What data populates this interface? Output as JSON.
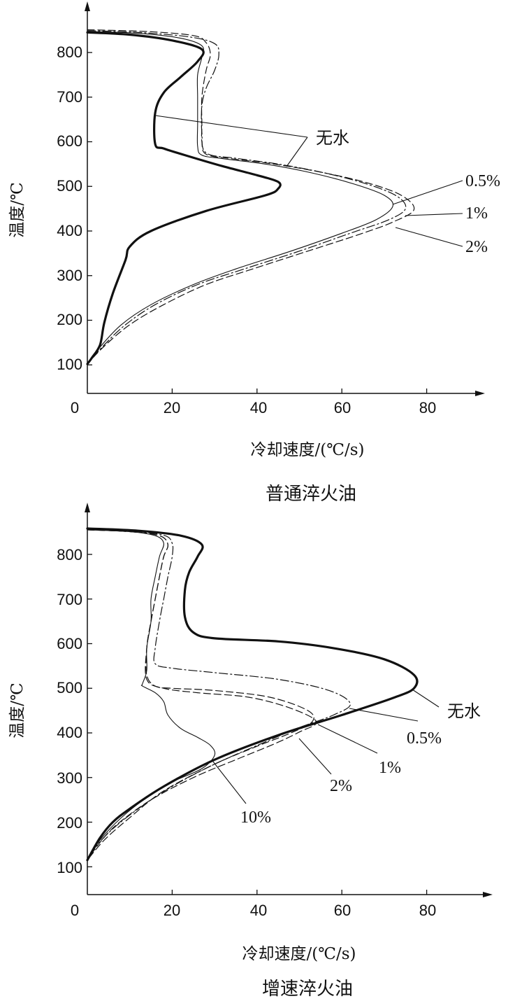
{
  "chart_data": [
    {
      "type": "line",
      "title": "普通淬火油",
      "xlabel": "冷却速度/(℃/s)",
      "ylabel": "温度/℃",
      "xticks": [
        "0",
        "20",
        "40",
        "60",
        "80"
      ],
      "yticks": [
        "100",
        "200",
        "300",
        "400",
        "500",
        "600",
        "700",
        "800"
      ],
      "xlim": [
        0,
        95
      ],
      "ylim": [
        40,
        900
      ],
      "grid": false,
      "series": [
        {
          "name": "无水",
          "style": "solid-thick",
          "points": [
            [
              0,
              845
            ],
            [
              10,
              840
            ],
            [
              20,
              827
            ],
            [
              27,
              807
            ],
            [
              26,
              780
            ],
            [
              22,
              745
            ],
            [
              18,
              710
            ],
            [
              16,
              665
            ],
            [
              16,
              595
            ],
            [
              18,
              585
            ],
            [
              23,
              570
            ],
            [
              32,
              545
            ],
            [
              40,
              525
            ],
            [
              45,
              510
            ],
            [
              45,
              495
            ],
            [
              42,
              480
            ],
            [
              28,
              445
            ],
            [
              15,
              400
            ],
            [
              10,
              365
            ],
            [
              9,
              335
            ],
            [
              6,
              260
            ],
            [
              4,
              195
            ],
            [
              3,
              145
            ],
            [
              1,
              115
            ],
            [
              0,
              102
            ]
          ]
        },
        {
          "name": "0.5%",
          "style": "solid-thin",
          "points": [
            [
              0,
              847
            ],
            [
              12,
              843
            ],
            [
              22,
              832
            ],
            [
              27,
              815
            ],
            [
              27,
              790
            ],
            [
              26,
              750
            ],
            [
              26,
              700
            ],
            [
              26,
              640
            ],
            [
              26,
              590
            ],
            [
              27,
              570
            ],
            [
              32,
              562
            ],
            [
              42,
              550
            ],
            [
              53,
              530
            ],
            [
              63,
              505
            ],
            [
              70,
              480
            ],
            [
              72,
              455
            ],
            [
              68,
              425
            ],
            [
              60,
              395
            ],
            [
              48,
              355
            ],
            [
              35,
              315
            ],
            [
              25,
              280
            ],
            [
              15,
              235
            ],
            [
              8,
              190
            ],
            [
              3,
              140
            ],
            [
              0,
              102
            ]
          ]
        },
        {
          "name": "1%",
          "style": "dashdot",
          "points": [
            [
              0,
              849
            ],
            [
              12,
              845
            ],
            [
              24,
              835
            ],
            [
              30,
              820
            ],
            [
              31,
              795
            ],
            [
              30,
              760
            ],
            [
              28,
              720
            ],
            [
              27,
              680
            ],
            [
              27,
              620
            ],
            [
              28,
              575
            ],
            [
              35,
              563
            ],
            [
              45,
              550
            ],
            [
              56,
              530
            ],
            [
              66,
              505
            ],
            [
              73,
              478
            ],
            [
              75,
              450
            ],
            [
              71,
              425
            ],
            [
              62,
              395
            ],
            [
              50,
              355
            ],
            [
              37,
              315
            ],
            [
              26,
              280
            ],
            [
              16,
              235
            ],
            [
              9,
              190
            ],
            [
              4,
              145
            ],
            [
              0,
              102
            ]
          ]
        },
        {
          "name": "2%",
          "style": "dashed",
          "points": [
            [
              0,
              851
            ],
            [
              14,
              847
            ],
            [
              25,
              838
            ],
            [
              28,
              822
            ],
            [
              29,
              795
            ],
            [
              28,
              760
            ],
            [
              27,
              700
            ],
            [
              27,
              640
            ],
            [
              27,
              600
            ],
            [
              28,
              572
            ],
            [
              34,
              562
            ],
            [
              44,
              550
            ],
            [
              55,
              532
            ],
            [
              66,
              508
            ],
            [
              74,
              480
            ],
            [
              77,
              448
            ],
            [
              72,
              420
            ],
            [
              64,
              392
            ],
            [
              52,
              355
            ],
            [
              39,
              315
            ],
            [
              28,
              280
            ],
            [
              18,
              235
            ],
            [
              10,
              190
            ],
            [
              4,
              142
            ],
            [
              0,
              102
            ]
          ]
        }
      ],
      "annotations": [
        "无水",
        "0.5%",
        "1%",
        "2%"
      ]
    },
    {
      "type": "line",
      "title": "增速淬火油",
      "xlabel": "冷却速度/(℃/s)",
      "ylabel": "温度/℃",
      "xticks": [
        "0",
        "20",
        "40",
        "60",
        "80"
      ],
      "yticks": [
        "100",
        "200",
        "300",
        "400",
        "500",
        "600",
        "700",
        "800"
      ],
      "xlim": [
        0,
        95
      ],
      "ylim": [
        40,
        900
      ],
      "grid": false,
      "series": [
        {
          "name": "无水",
          "style": "solid-thick",
          "points": [
            [
              0,
              858
            ],
            [
              12,
              853
            ],
            [
              22,
              842
            ],
            [
              27,
              822
            ],
            [
              26,
              795
            ],
            [
              24,
              760
            ],
            [
              23,
              720
            ],
            [
              23,
              660
            ],
            [
              25,
              625
            ],
            [
              30,
              612
            ],
            [
              45,
              605
            ],
            [
              58,
              590
            ],
            [
              70,
              565
            ],
            [
              77,
              530
            ],
            [
              77,
              500
            ],
            [
              72,
              478
            ],
            [
              60,
              440
            ],
            [
              45,
              395
            ],
            [
              30,
              340
            ],
            [
              18,
              280
            ],
            [
              10,
              230
            ],
            [
              6,
              200
            ],
            [
              3,
              165
            ],
            [
              0,
              115
            ]
          ]
        },
        {
          "name": "0.5%",
          "style": "dashdot",
          "points": [
            [
              0,
              856
            ],
            [
              10,
              852
            ],
            [
              18,
              843
            ],
            [
              20,
              825
            ],
            [
              20,
              795
            ],
            [
              19,
              750
            ],
            [
              18,
              700
            ],
            [
              17,
              650
            ],
            [
              16,
              590
            ],
            [
              16,
              555
            ],
            [
              20,
              545
            ],
            [
              30,
              535
            ],
            [
              45,
              520
            ],
            [
              57,
              495
            ],
            [
              62,
              465
            ],
            [
              58,
              440
            ],
            [
              50,
              412
            ],
            [
              42,
              380
            ],
            [
              30,
              330
            ],
            [
              20,
              280
            ],
            [
              12,
              230
            ],
            [
              6,
              185
            ],
            [
              2,
              145
            ],
            [
              0,
              115
            ]
          ]
        },
        {
          "name": "1%",
          "style": "dashed",
          "points": [
            [
              0,
              855
            ],
            [
              10,
              851
            ],
            [
              17,
              842
            ],
            [
              19,
              822
            ],
            [
              18,
              795
            ],
            [
              17,
              750
            ],
            [
              16,
              700
            ],
            [
              15,
              650
            ],
            [
              14,
              590
            ],
            [
              14,
              530
            ],
            [
              16,
              505
            ],
            [
              20,
              500
            ],
            [
              30,
              495
            ],
            [
              43,
              480
            ],
            [
              52,
              450
            ],
            [
              53,
              425
            ],
            [
              48,
              400
            ],
            [
              40,
              370
            ],
            [
              30,
              330
            ],
            [
              18,
              270
            ],
            [
              10,
              210
            ],
            [
              4,
              160
            ],
            [
              0,
              115
            ]
          ]
        },
        {
          "name": "2%",
          "style": "dashed",
          "points": [
            [
              0,
              855
            ],
            [
              10,
              851
            ],
            [
              17,
              842
            ],
            [
              19,
              822
            ],
            [
              18,
              795
            ],
            [
              17,
              750
            ],
            [
              16,
              700
            ],
            [
              15,
              650
            ],
            [
              14,
              590
            ],
            [
              14,
              520
            ],
            [
              18,
              500
            ],
            [
              26,
              490
            ],
            [
              38,
              480
            ],
            [
              48,
              455
            ],
            [
              54,
              425
            ],
            [
              50,
              402
            ],
            [
              44,
              375
            ],
            [
              35,
              340
            ],
            [
              25,
              300
            ],
            [
              15,
              250
            ],
            [
              7,
              195
            ],
            [
              3,
              155
            ],
            [
              0,
              115
            ]
          ]
        },
        {
          "name": "10%",
          "style": "solid-thin",
          "points": [
            [
              0,
              855
            ],
            [
              10,
              851
            ],
            [
              16,
              842
            ],
            [
              18,
              825
            ],
            [
              17,
              795
            ],
            [
              16,
              750
            ],
            [
              15,
              700
            ],
            [
              15,
              650
            ],
            [
              14,
              590
            ],
            [
              14,
              540
            ],
            [
              13,
              510
            ],
            [
              13,
              505
            ],
            [
              16,
              490
            ],
            [
              18,
              470
            ],
            [
              19,
              440
            ],
            [
              22,
              410
            ],
            [
              26,
              390
            ],
            [
              29,
              372
            ],
            [
              30,
              350
            ],
            [
              27,
              320
            ],
            [
              20,
              290
            ],
            [
              14,
              255
            ],
            [
              8,
              210
            ],
            [
              3,
              160
            ],
            [
              0,
              115
            ]
          ]
        }
      ],
      "annotations": [
        "无水",
        "0.5%",
        "1%",
        "2%",
        "10%"
      ]
    }
  ]
}
